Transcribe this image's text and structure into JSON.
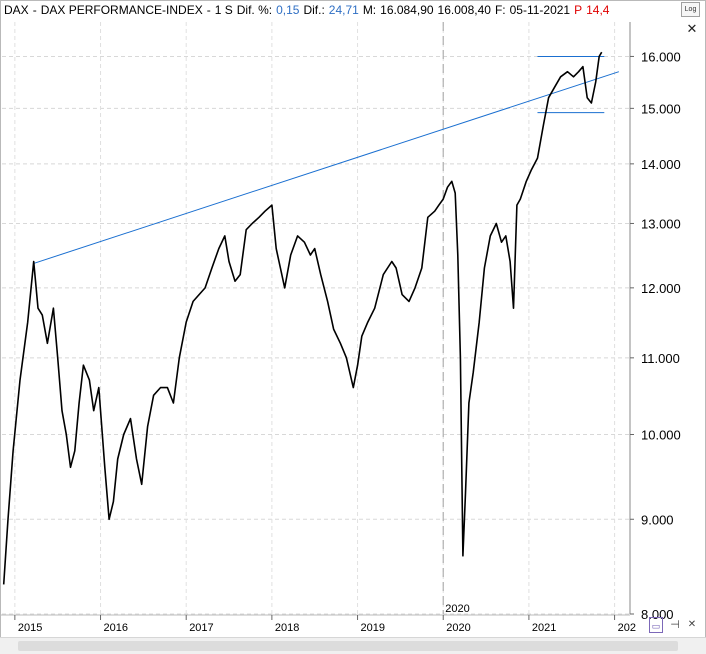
{
  "header": {
    "symbol": "DAX",
    "separator": "-",
    "name": "DAX PERFORMANCE-INDEX",
    "dash": "-",
    "period": "1 S",
    "dif_pct_label": "Dif. %:",
    "dif_pct_value": "0,15",
    "dif_label": "Dif.:",
    "dif_value": "24,71",
    "m_label": "M:",
    "m_value": "16.084,90",
    "low_value": "16.008,40",
    "date_label": "F:",
    "date_value": "05-11-2021",
    "p_label": "P",
    "p_value": "14,4"
  },
  "controls": {
    "log_button": "Log",
    "close_icon": "close-icon",
    "doc_icon": "document-icon",
    "pin_icon": "pin-icon",
    "small_close_icon": "close-icon"
  },
  "chart_data": {
    "type": "line",
    "scale": "log",
    "ylim": [
      8000,
      16700
    ],
    "yticks": [
      "16.000",
      "15.000",
      "14.000",
      "13.000",
      "12.000",
      "11.000",
      "10.000",
      "9.000",
      "8.000"
    ],
    "ytick_values": [
      16000,
      15000,
      14000,
      13000,
      12000,
      11000,
      10000,
      9000,
      8000
    ],
    "xticks": [
      "2015",
      "2016",
      "2017",
      "2018",
      "2019",
      "2020",
      "2021",
      "202"
    ],
    "xtick_dates": [
      2015.0,
      2016.0,
      2017.0,
      2018.0,
      2019.0,
      2020.0,
      2021.0,
      2022.0
    ],
    "xlim": [
      2014.85,
      2022.18
    ],
    "grid": true,
    "marker_label": "2020",
    "marker_date": 2020.0,
    "series": [
      {
        "color": "#000000",
        "x": [
          2014.87,
          2014.92,
          2014.98,
          2015.06,
          2015.15,
          2015.22,
          2015.27,
          2015.32,
          2015.38,
          2015.45,
          2015.5,
          2015.55,
          2015.6,
          2015.65,
          2015.7,
          2015.75,
          2015.8,
          2015.87,
          2015.92,
          2015.98,
          2016.05,
          2016.1,
          2016.15,
          2016.2,
          2016.27,
          2016.35,
          2016.42,
          2016.48,
          2016.55,
          2016.62,
          2016.7,
          2016.78,
          2016.85,
          2016.92,
          2017.0,
          2017.08,
          2017.15,
          2017.22,
          2017.3,
          2017.38,
          2017.45,
          2017.5,
          2017.57,
          2017.63,
          2017.7,
          2017.77,
          2017.85,
          2017.92,
          2018.0,
          2018.05,
          2018.1,
          2018.15,
          2018.22,
          2018.3,
          2018.38,
          2018.45,
          2018.5,
          2018.57,
          2018.65,
          2018.72,
          2018.8,
          2018.87,
          2018.95,
          2019.0,
          2019.05,
          2019.12,
          2019.2,
          2019.3,
          2019.4,
          2019.45,
          2019.52,
          2019.6,
          2019.67,
          2019.75,
          2019.82,
          2019.9,
          2019.95,
          2020.0,
          2020.05,
          2020.1,
          2020.14,
          2020.17,
          2020.2,
          2020.23,
          2020.26,
          2020.3,
          2020.35,
          2020.42,
          2020.48,
          2020.55,
          2020.62,
          2020.68,
          2020.73,
          2020.78,
          2020.82,
          2020.86,
          2020.9,
          2020.97,
          2021.03,
          2021.1,
          2021.17,
          2021.23,
          2021.3,
          2021.37,
          2021.45,
          2021.52,
          2021.58,
          2021.63,
          2021.68,
          2021.73,
          2021.78,
          2021.82,
          2021.85
        ],
        "values": [
          8300,
          9000,
          9800,
          10700,
          11500,
          12400,
          11700,
          11600,
          11200,
          11700,
          11000,
          10300,
          10000,
          9600,
          9800,
          10400,
          10900,
          10700,
          10300,
          10600,
          9600,
          9000,
          9200,
          9700,
          10000,
          10200,
          9700,
          9400,
          10100,
          10500,
          10600,
          10600,
          10400,
          11000,
          11500,
          11800,
          11900,
          12000,
          12300,
          12600,
          12800,
          12400,
          12100,
          12200,
          12900,
          13000,
          13100,
          13200,
          13300,
          12600,
          12300,
          12000,
          12500,
          12800,
          12700,
          12500,
          12600,
          12200,
          11800,
          11400,
          11200,
          11000,
          10600,
          10900,
          11300,
          11500,
          11700,
          12200,
          12400,
          12300,
          11900,
          11800,
          12000,
          12300,
          13100,
          13200,
          13300,
          13400,
          13600,
          13700,
          13500,
          12500,
          11000,
          8600,
          9300,
          10400,
          10800,
          11500,
          12300,
          12800,
          13000,
          12700,
          12800,
          12400,
          11700,
          13300,
          13400,
          13700,
          13900,
          14100,
          14700,
          15200,
          15400,
          15600,
          15700,
          15600,
          15700,
          15800,
          15200,
          15100,
          15500,
          16000,
          16084
        ]
      }
    ],
    "trendlines": [
      {
        "color": "#1a6fd0",
        "from": [
          2015.22,
          12370
        ],
        "to": [
          2022.05,
          15700
        ]
      },
      {
        "color": "#1a6fd0",
        "from": [
          2021.1,
          16000
        ],
        "to": [
          2021.88,
          16000
        ]
      },
      {
        "color": "#1a6fd0",
        "from": [
          2021.1,
          14920
        ],
        "to": [
          2021.88,
          14920
        ]
      }
    ]
  }
}
